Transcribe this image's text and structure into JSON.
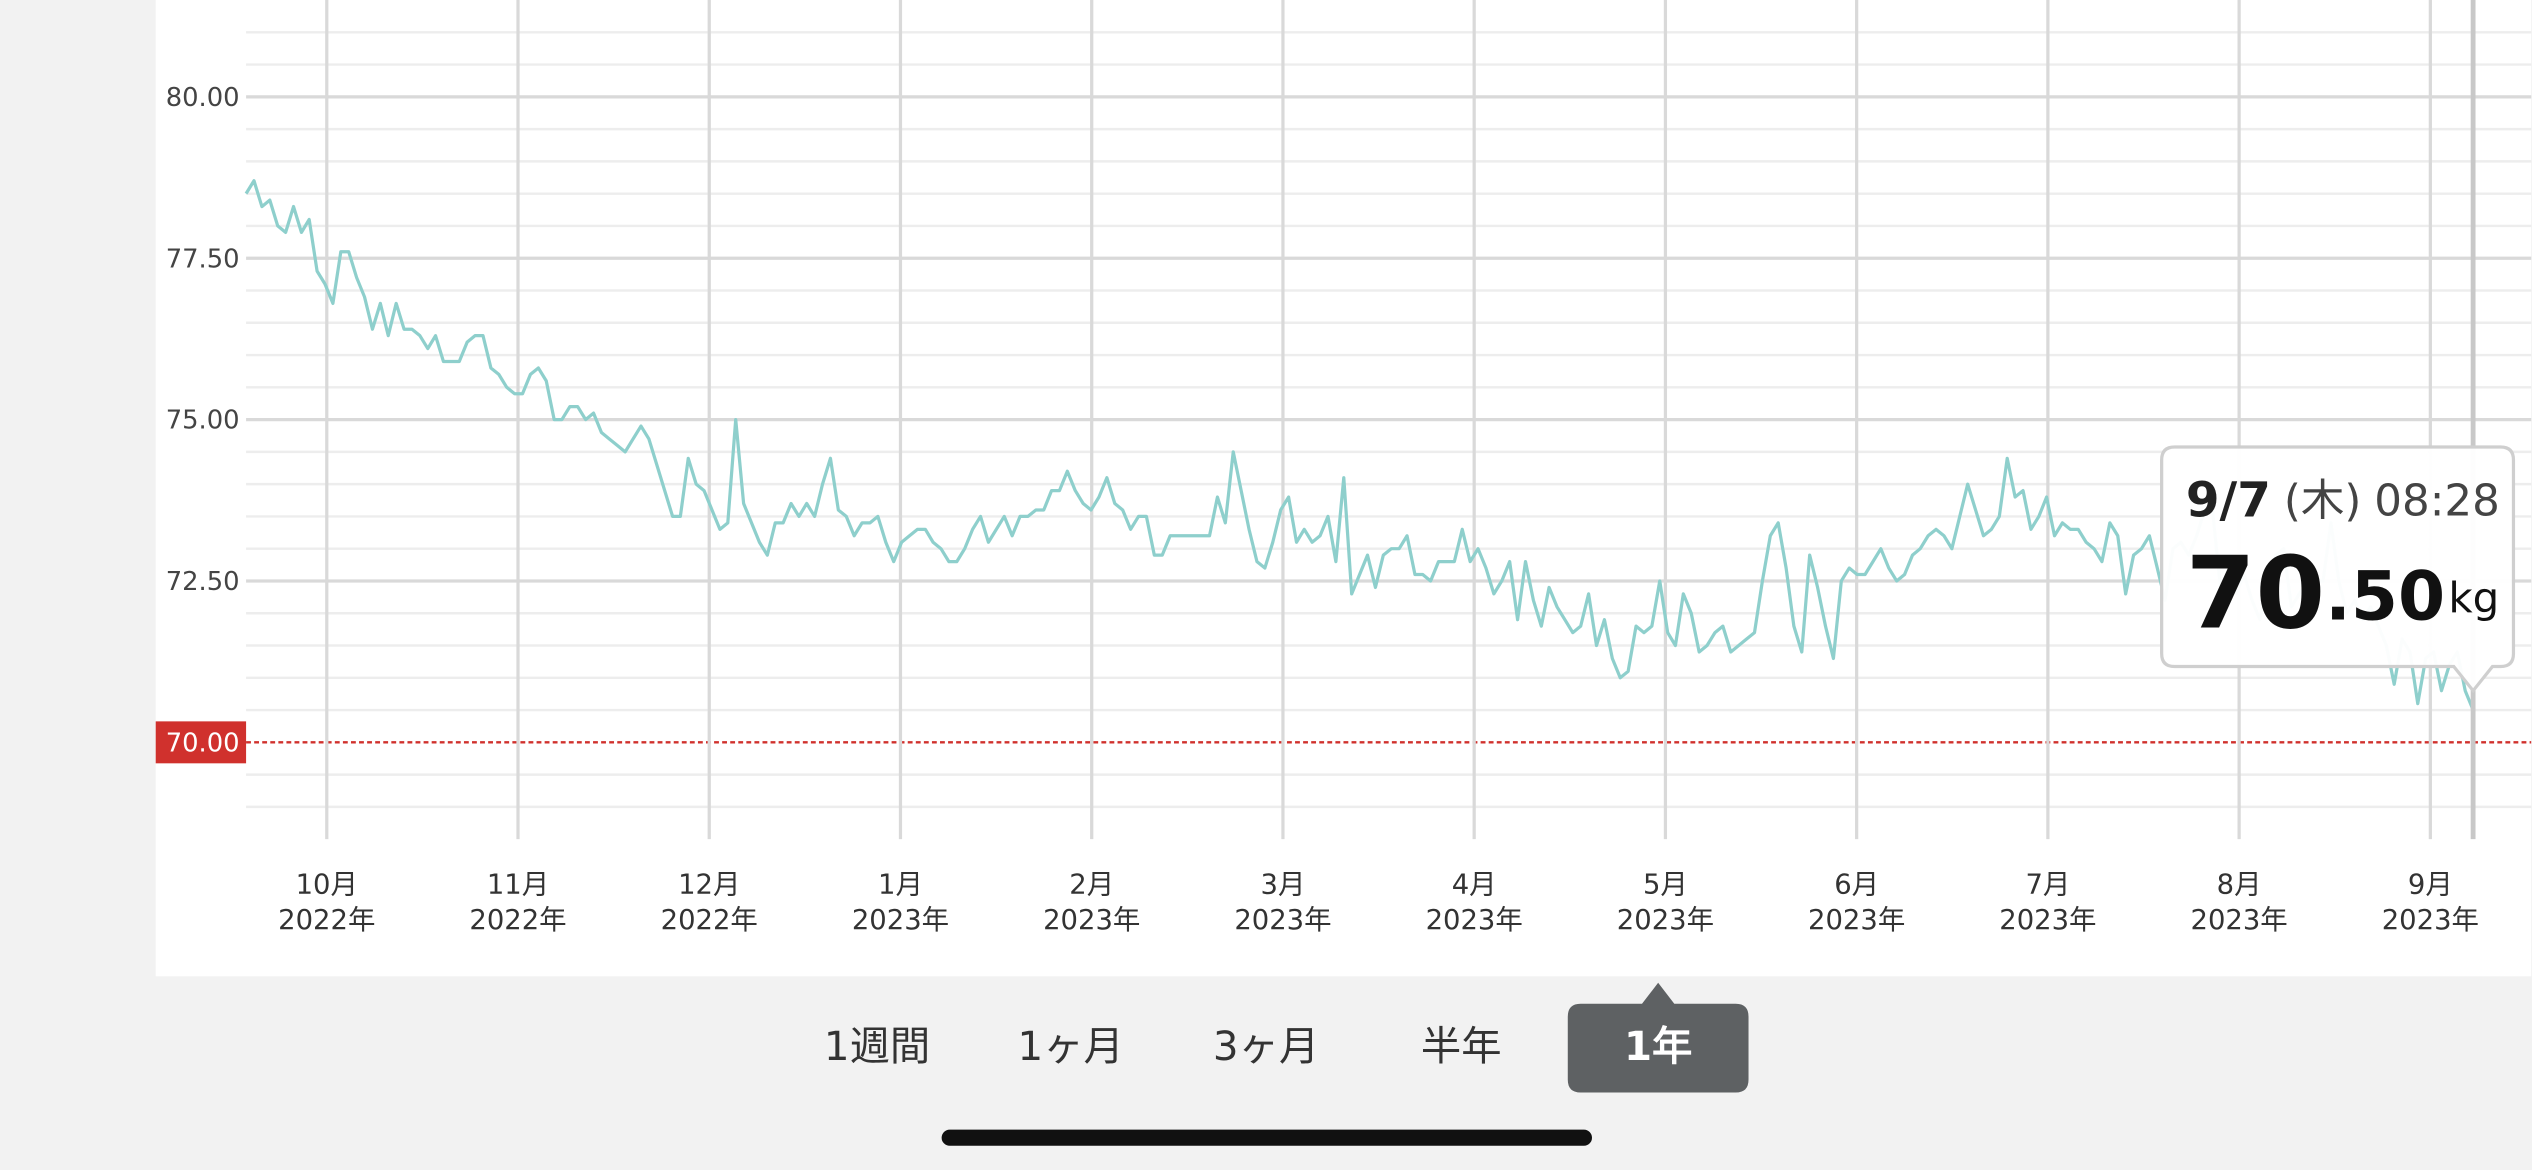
{
  "chart_data": {
    "type": "line",
    "ylim": [
      68.5,
      81.5
    ],
    "yticks": [
      {
        "value": 70,
        "label": "70.00"
      },
      {
        "value": 72.5,
        "label": "72.50"
      },
      {
        "value": 75,
        "label": "75.00"
      },
      {
        "value": 77.5,
        "label": "77.50"
      },
      {
        "value": 80,
        "label": "80.00"
      }
    ],
    "minor_yticks": [
      69,
      69.5,
      70.5,
      71,
      71.5,
      72,
      73,
      73.5,
      74,
      74.5,
      75.5,
      76,
      76.5,
      77,
      78,
      78.5,
      79,
      79.5,
      80.5,
      81
    ],
    "target": 70,
    "target_color": "#d0312d",
    "x_labels": [
      [
        "10月",
        "2022年"
      ],
      [
        "11月",
        "2022年"
      ],
      [
        "12月",
        "2022年"
      ],
      [
        "1月",
        "2023年"
      ],
      [
        "2月",
        "2023年"
      ],
      [
        "3月",
        "2023年"
      ],
      [
        "4月",
        "2023年"
      ],
      [
        "5月",
        "2023年"
      ],
      [
        "6月",
        "2023年"
      ],
      [
        "7月",
        "2023年"
      ],
      [
        "8月",
        "2023年"
      ],
      [
        "9月",
        "2023年"
      ]
    ],
    "series": [
      {
        "color": "#8ecfcc",
        "values": [
          78.5,
          78.7,
          78.3,
          78.4,
          78.0,
          77.9,
          78.3,
          77.9,
          78.1,
          77.3,
          77.1,
          76.8,
          77.6,
          77.6,
          77.2,
          76.9,
          76.4,
          76.8,
          76.3,
          76.8,
          76.4,
          76.4,
          76.3,
          76.1,
          76.3,
          75.9,
          75.9,
          75.9,
          76.2,
          76.3,
          76.3,
          75.8,
          75.7,
          75.5,
          75.4,
          75.4,
          75.7,
          75.8,
          75.6,
          75.0,
          75.0,
          75.2,
          75.2,
          75.0,
          75.1,
          74.8,
          74.7,
          74.6,
          74.5,
          74.7,
          74.9,
          74.7,
          74.3,
          73.9,
          73.5,
          73.5,
          74.4,
          74.0,
          73.9,
          73.6,
          73.3,
          73.4,
          75.0,
          73.7,
          73.4,
          73.1,
          72.9,
          73.4,
          73.4,
          73.7,
          73.5,
          73.7,
          73.5,
          74.0,
          74.4,
          73.6,
          73.5,
          73.2,
          73.4,
          73.4,
          73.5,
          73.1,
          72.8,
          73.1,
          73.2,
          73.3,
          73.3,
          73.1,
          73.0,
          72.8,
          72.8,
          73.0,
          73.3,
          73.5,
          73.1,
          73.3,
          73.5,
          73.2,
          73.5,
          73.5,
          73.6,
          73.6,
          73.9,
          73.9,
          74.2,
          73.9,
          73.7,
          73.6,
          73.8,
          74.1,
          73.7,
          73.6,
          73.3,
          73.5,
          73.5,
          72.9,
          72.9,
          73.2,
          73.2,
          73.2,
          73.2,
          73.2,
          73.2,
          73.8,
          73.4,
          74.5,
          73.9,
          73.3,
          72.8,
          72.7,
          73.1,
          73.6,
          73.8,
          73.1,
          73.3,
          73.1,
          73.2,
          73.5,
          72.8,
          74.1,
          72.3,
          72.6,
          72.9,
          72.4,
          72.9,
          73.0,
          73.0,
          73.2,
          72.6,
          72.6,
          72.5,
          72.8,
          72.8,
          72.8,
          73.3,
          72.8,
          73.0,
          72.7,
          72.3,
          72.5,
          72.8,
          71.9,
          72.8,
          72.2,
          71.8,
          72.4,
          72.1,
          71.9,
          71.7,
          71.8,
          72.3,
          71.5,
          71.9,
          71.3,
          71.0,
          71.1,
          71.8,
          71.7,
          71.8,
          72.5,
          71.7,
          71.5,
          72.3,
          72.0,
          71.4,
          71.5,
          71.7,
          71.8,
          71.4,
          71.5,
          71.6,
          71.7,
          72.5,
          73.2,
          73.4,
          72.7,
          71.8,
          71.4,
          72.9,
          72.4,
          71.8,
          71.3,
          72.5,
          72.7,
          72.6,
          72.6,
          72.8,
          73.0,
          72.7,
          72.5,
          72.6,
          72.9,
          73.0,
          73.2,
          73.3,
          73.2,
          73.0,
          73.5,
          74.0,
          73.6,
          73.2,
          73.3,
          73.5,
          74.4,
          73.8,
          73.9,
          73.3,
          73.5,
          73.8,
          73.2,
          73.4,
          73.3,
          73.3,
          73.1,
          73.0,
          72.8,
          73.4,
          73.2,
          72.3,
          72.9,
          73.0,
          73.2,
          72.7,
          72.2,
          73.0,
          73.1,
          72.9,
          73.2,
          73.6,
          73.6,
          72.4,
          72.4,
          72.3,
          72.6,
          72.2,
          71.9,
          72.5,
          72.9,
          73.0,
          72.1,
          72.3,
          72.5,
          72.5,
          72.5,
          73.4,
          72.5,
          72.0,
          72.2,
          71.9,
          72.1,
          71.8,
          71.5,
          70.9,
          71.6,
          71.4,
          70.6,
          71.3,
          71.4,
          70.8,
          71.2,
          71.4,
          70.8,
          70.5
        ]
      }
    ],
    "tooltip": {
      "date": "9/7",
      "weekday": "(木)",
      "time": "08:28",
      "value_int": "70",
      "value_dec": ".50",
      "unit": "kg"
    }
  },
  "tabs": {
    "items": [
      "1週間",
      "1ヶ月",
      "3ヶ月",
      "半年",
      "1年"
    ],
    "selected": 4
  }
}
